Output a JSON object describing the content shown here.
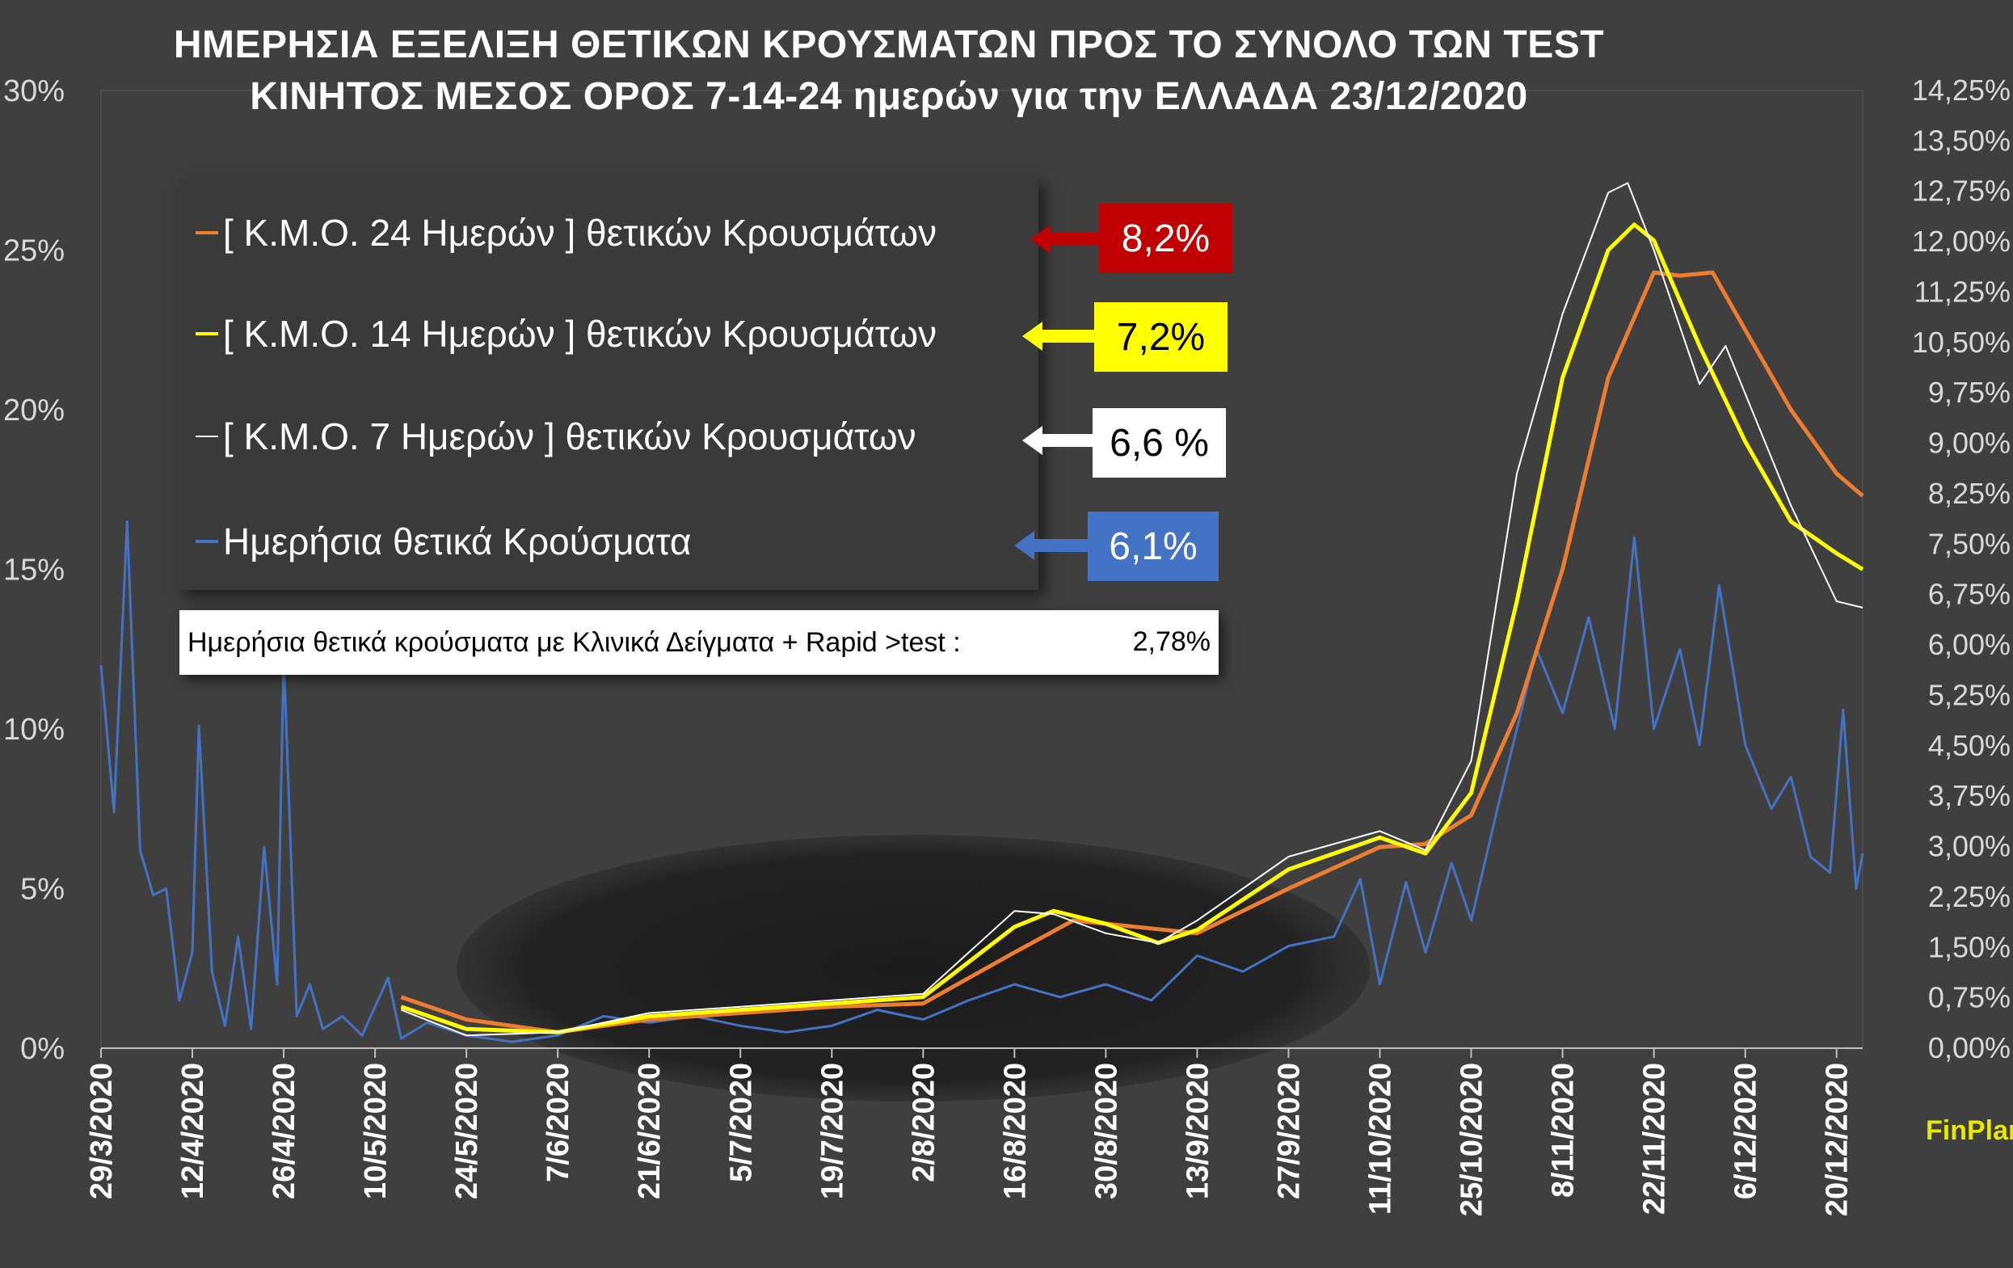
{
  "title": {
    "line1": "ΗΜΕΡΗΣΙΑ ΕΞΕΛΙΞΗ ΘΕΤΙΚΩΝ ΚΡΟΥΣΜΑΤΩΝ ΠΡΟΣ ΤΟ ΣΥΝΟΛΟ ΤΩΝ TEST",
    "line2": "ΚΙΝΗΤΟΣ  ΜΕΣΟΣ  ΟΡΟΣ   7-14-24 ημερών για την  ΕΛΛΑΔΑ  23/12/2020"
  },
  "legend": [
    {
      "label": "[ Κ.Μ.Ο.  24 Ημερών ] θετικών Κρουσμάτων",
      "value": "8,2%",
      "color": "#ed7d31",
      "badge_bg": "#c00000",
      "badge_fg": "#ffffff"
    },
    {
      "label": "[ Κ.Μ.Ο.  14 Ημερών ] θετικών Κρουσμάτων",
      "value": "7,2%",
      "color": "#ffff00",
      "badge_bg": "#ffff00",
      "badge_fg": "#000000"
    },
    {
      "label": "[ Κ.Μ.Ο.  7 Ημερών ] θετικών Κρουσμάτων",
      "value": "6,6 %",
      "color": "#ffffff",
      "badge_bg": "#ffffff",
      "badge_fg": "#000000"
    },
    {
      "label": "Ημερήσια θετικά Κρούσματα",
      "value": "6,1%",
      "color": "#4472c4",
      "badge_bg": "#4472c4",
      "badge_fg": "#ffffff"
    }
  ],
  "note": {
    "text": "Ημερήσια θετικά κρούσματα με Κλινικά Δείγματα + Rapid >test :",
    "value": "2,78%"
  },
  "brand": "FinPlan.gr",
  "chart_data": {
    "type": "line",
    "grid": false,
    "legend_position": "top-left",
    "x_tick_labels": [
      "29/3/2020",
      "12/4/2020",
      "26/4/2020",
      "10/5/2020",
      "24/5/2020",
      "7/6/2020",
      "21/6/2020",
      "5/7/2020",
      "19/7/2020",
      "2/8/2020",
      "16/8/2020",
      "30/8/2020",
      "13/9/2020",
      "27/9/2020",
      "11/10/2020",
      "25/10/2020",
      "8/11/2020",
      "22/11/2020",
      "6/12/2020",
      "20/12/2020"
    ],
    "x_range": [
      "29/3/2020",
      "24/12/2020"
    ],
    "y_left": {
      "ticks": [
        "0%",
        "5%",
        "10%",
        "15%",
        "20%",
        "25%",
        "30%"
      ],
      "range": [
        0,
        30
      ]
    },
    "y_right": {
      "ticks": [
        "0,00%",
        "0,75%",
        "1,50%",
        "2,25%",
        "3,00%",
        "3,75%",
        "4,50%",
        "5,25%",
        "6,00%",
        "6,75%",
        "7,50%",
        "8,25%",
        "9,00%",
        "9,75%",
        "10,50%",
        "11,25%",
        "12,00%",
        "12,75%",
        "13,50%",
        "14,25%"
      ],
      "range": [
        0,
        14.25
      ]
    },
    "series": [
      {
        "name": "[ Κ.Μ.Ο.  24 Ημερών ] θετικών Κρουσμάτων",
        "color": "#ed7d31",
        "points": [
          [
            "14/5/2020",
            1.6
          ],
          [
            "24/5/2020",
            0.9
          ],
          [
            "7/6/2020",
            0.5
          ],
          [
            "21/6/2020",
            0.9
          ],
          [
            "5/7/2020",
            1.1
          ],
          [
            "19/7/2020",
            1.3
          ],
          [
            "2/8/2020",
            1.4
          ],
          [
            "16/8/2020",
            3.0
          ],
          [
            "25/8/2020",
            4.0
          ],
          [
            "30/8/2020",
            3.9
          ],
          [
            "13/9/2020",
            3.6
          ],
          [
            "27/9/2020",
            5.0
          ],
          [
            "11/10/2020",
            6.3
          ],
          [
            "18/10/2020",
            6.4
          ],
          [
            "25/10/2020",
            7.3
          ],
          [
            "1/11/2020",
            10.5
          ],
          [
            "8/11/2020",
            15.0
          ],
          [
            "15/11/2020",
            21.0
          ],
          [
            "22/11/2020",
            24.3
          ],
          [
            "26/11/2020",
            24.2
          ],
          [
            "1/12/2020",
            24.3
          ],
          [
            "6/12/2020",
            22.5
          ],
          [
            "13/12/2020",
            20.0
          ],
          [
            "20/12/2020",
            18.0
          ],
          [
            "24/12/2020",
            17.3
          ]
        ]
      },
      {
        "name": "[ Κ.Μ.Ο.  14 Ημερών ] θετικών Κρουσμάτων",
        "color": "#ffff00",
        "points": [
          [
            "14/5/2020",
            1.3
          ],
          [
            "24/5/2020",
            0.6
          ],
          [
            "7/6/2020",
            0.5
          ],
          [
            "21/6/2020",
            1.0
          ],
          [
            "5/7/2020",
            1.2
          ],
          [
            "19/7/2020",
            1.4
          ],
          [
            "2/8/2020",
            1.6
          ],
          [
            "16/8/2020",
            3.8
          ],
          [
            "22/8/2020",
            4.3
          ],
          [
            "30/8/2020",
            3.9
          ],
          [
            "7/9/2020",
            3.3
          ],
          [
            "13/9/2020",
            3.7
          ],
          [
            "27/9/2020",
            5.6
          ],
          [
            "11/10/2020",
            6.6
          ],
          [
            "18/10/2020",
            6.1
          ],
          [
            "25/10/2020",
            8.0
          ],
          [
            "1/11/2020",
            14.0
          ],
          [
            "8/11/2020",
            21.0
          ],
          [
            "15/11/2020",
            25.0
          ],
          [
            "19/11/2020",
            25.8
          ],
          [
            "22/11/2020",
            25.3
          ],
          [
            "29/11/2020",
            22.0
          ],
          [
            "6/12/2020",
            19.0
          ],
          [
            "13/12/2020",
            16.5
          ],
          [
            "20/12/2020",
            15.5
          ],
          [
            "24/12/2020",
            15.0
          ]
        ]
      },
      {
        "name": "[ Κ.Μ.Ο.  7 Ημερών ] θετικών Κρουσμάτων",
        "color": "#ffffff",
        "points": [
          [
            "14/5/2020",
            1.2
          ],
          [
            "24/5/2020",
            0.4
          ],
          [
            "7/6/2020",
            0.5
          ],
          [
            "21/6/2020",
            1.1
          ],
          [
            "5/7/2020",
            1.3
          ],
          [
            "19/7/2020",
            1.5
          ],
          [
            "2/8/2020",
            1.7
          ],
          [
            "16/8/2020",
            4.3
          ],
          [
            "22/8/2020",
            4.2
          ],
          [
            "30/8/2020",
            3.6
          ],
          [
            "7/9/2020",
            3.3
          ],
          [
            "13/9/2020",
            4.0
          ],
          [
            "27/9/2020",
            6.0
          ],
          [
            "11/10/2020",
            6.8
          ],
          [
            "18/10/2020",
            6.2
          ],
          [
            "25/10/2020",
            9.0
          ],
          [
            "1/11/2020",
            18.0
          ],
          [
            "8/11/2020",
            23.0
          ],
          [
            "15/11/2020",
            26.8
          ],
          [
            "18/11/2020",
            27.1
          ],
          [
            "22/11/2020",
            25.0
          ],
          [
            "29/11/2020",
            20.8
          ],
          [
            "3/12/2020",
            22.0
          ],
          [
            "6/12/2020",
            20.5
          ],
          [
            "13/12/2020",
            17.0
          ],
          [
            "20/12/2020",
            14.0
          ],
          [
            "24/12/2020",
            13.8
          ]
        ]
      },
      {
        "name": "Ημερήσια θετικά Κρούσματα",
        "color": "#4472c4",
        "points": [
          [
            "29/3/2020",
            12.0
          ],
          [
            "31/3/2020",
            7.4
          ],
          [
            "2/4/2020",
            16.5
          ],
          [
            "4/4/2020",
            6.2
          ],
          [
            "6/4/2020",
            4.8
          ],
          [
            "8/4/2020",
            5.0
          ],
          [
            "10/4/2020",
            1.5
          ],
          [
            "12/4/2020",
            3.0
          ],
          [
            "13/4/2020",
            10.1
          ],
          [
            "15/4/2020",
            2.4
          ],
          [
            "17/4/2020",
            0.7
          ],
          [
            "19/4/2020",
            3.5
          ],
          [
            "21/4/2020",
            0.6
          ],
          [
            "23/4/2020",
            6.3
          ],
          [
            "25/4/2020",
            2.0
          ],
          [
            "26/4/2020",
            12.3
          ],
          [
            "28/4/2020",
            1.0
          ],
          [
            "30/4/2020",
            2.0
          ],
          [
            "2/5/2020",
            0.6
          ],
          [
            "5/5/2020",
            1.0
          ],
          [
            "8/5/2020",
            0.4
          ],
          [
            "12/5/2020",
            2.2
          ],
          [
            "14/5/2020",
            0.3
          ],
          [
            "18/5/2020",
            0.8
          ],
          [
            "24/5/2020",
            0.4
          ],
          [
            "31/5/2020",
            0.2
          ],
          [
            "7/6/2020",
            0.4
          ],
          [
            "14/6/2020",
            1.0
          ],
          [
            "21/6/2020",
            0.8
          ],
          [
            "28/6/2020",
            1.0
          ],
          [
            "5/7/2020",
            0.7
          ],
          [
            "12/7/2020",
            0.5
          ],
          [
            "19/7/2020",
            0.7
          ],
          [
            "26/7/2020",
            1.2
          ],
          [
            "2/8/2020",
            0.9
          ],
          [
            "9/8/2020",
            1.5
          ],
          [
            "16/8/2020",
            2.0
          ],
          [
            "23/8/2020",
            1.6
          ],
          [
            "30/8/2020",
            2.0
          ],
          [
            "6/9/2020",
            1.5
          ],
          [
            "13/9/2020",
            2.9
          ],
          [
            "20/9/2020",
            2.4
          ],
          [
            "27/9/2020",
            3.2
          ],
          [
            "4/10/2020",
            3.5
          ],
          [
            "8/10/2020",
            5.3
          ],
          [
            "11/10/2020",
            2.0
          ],
          [
            "15/10/2020",
            5.2
          ],
          [
            "18/10/2020",
            3.0
          ],
          [
            "22/10/2020",
            5.8
          ],
          [
            "25/10/2020",
            4.0
          ],
          [
            "29/10/2020",
            7.5
          ],
          [
            "1/11/2020",
            10.0
          ],
          [
            "4/11/2020",
            12.5
          ],
          [
            "8/11/2020",
            10.5
          ],
          [
            "12/11/2020",
            13.5
          ],
          [
            "16/11/2020",
            10.0
          ],
          [
            "19/11/2020",
            16.0
          ],
          [
            "22/11/2020",
            10.0
          ],
          [
            "26/11/2020",
            12.5
          ],
          [
            "29/11/2020",
            9.5
          ],
          [
            "2/12/2020",
            14.5
          ],
          [
            "6/12/2020",
            9.5
          ],
          [
            "10/12/2020",
            7.5
          ],
          [
            "13/12/2020",
            8.5
          ],
          [
            "16/12/2020",
            6.0
          ],
          [
            "19/12/2020",
            5.5
          ],
          [
            "21/12/2020",
            10.6
          ],
          [
            "23/12/2020",
            5.0
          ],
          [
            "24/12/2020",
            6.1
          ]
        ]
      }
    ]
  }
}
